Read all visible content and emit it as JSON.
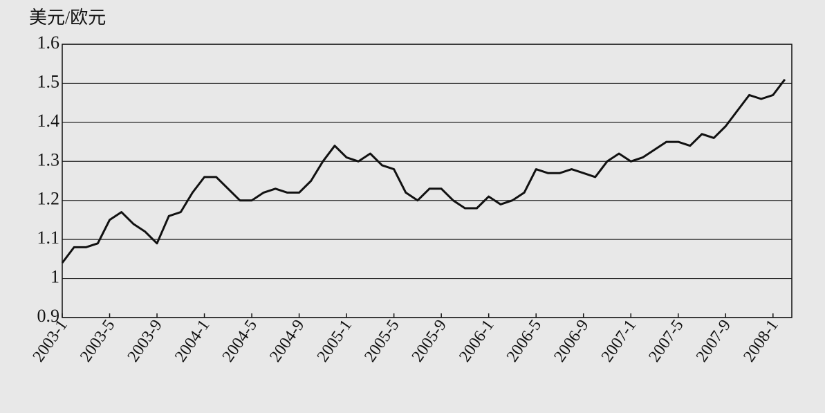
{
  "chart_data": {
    "type": "line",
    "y_label": "美元/欧元",
    "x": [
      "2003-1",
      "2003-2",
      "2003-3",
      "2003-4",
      "2003-5",
      "2003-6",
      "2003-7",
      "2003-8",
      "2003-9",
      "2003-10",
      "2003-11",
      "2003-12",
      "2004-1",
      "2004-2",
      "2004-3",
      "2004-4",
      "2004-5",
      "2004-6",
      "2004-7",
      "2004-8",
      "2004-9",
      "2004-10",
      "2004-11",
      "2004-12",
      "2005-1",
      "2005-2",
      "2005-3",
      "2005-4",
      "2005-5",
      "2005-6",
      "2005-7",
      "2005-8",
      "2005-9",
      "2005-10",
      "2005-11",
      "2005-12",
      "2006-1",
      "2006-2",
      "2006-3",
      "2006-4",
      "2006-5",
      "2006-6",
      "2006-7",
      "2006-8",
      "2006-9",
      "2006-10",
      "2006-11",
      "2006-12",
      "2007-1",
      "2007-2",
      "2007-3",
      "2007-4",
      "2007-5",
      "2007-6",
      "2007-7",
      "2007-8",
      "2007-9",
      "2007-10",
      "2007-11",
      "2007-12",
      "2008-1",
      "2008-2"
    ],
    "values": [
      1.04,
      1.08,
      1.08,
      1.09,
      1.15,
      1.17,
      1.14,
      1.12,
      1.09,
      1.16,
      1.17,
      1.22,
      1.26,
      1.26,
      1.23,
      1.2,
      1.2,
      1.22,
      1.23,
      1.22,
      1.22,
      1.25,
      1.3,
      1.34,
      1.31,
      1.3,
      1.32,
      1.29,
      1.28,
      1.22,
      1.2,
      1.23,
      1.23,
      1.2,
      1.18,
      1.18,
      1.21,
      1.19,
      1.2,
      1.22,
      1.28,
      1.27,
      1.27,
      1.28,
      1.27,
      1.26,
      1.3,
      1.32,
      1.3,
      1.31,
      1.33,
      1.35,
      1.35,
      1.34,
      1.37,
      1.36,
      1.39,
      1.43,
      1.47,
      1.46,
      1.47,
      1.51
    ],
    "color": "#111111",
    "xticks": [
      "2003-1",
      "2003-5",
      "2003-9",
      "2004-1",
      "2004-5",
      "2004-9",
      "2005-1",
      "2005-5",
      "2005-9",
      "2006-1",
      "2006-5",
      "2006-9",
      "2007-1",
      "2007-5",
      "2007-9",
      "2008-1"
    ],
    "ylim": [
      0.9,
      1.6
    ],
    "yticks": [
      0.9,
      1,
      1.1,
      1.2,
      1.3,
      1.4,
      1.5,
      1.6
    ],
    "grid": true
  }
}
